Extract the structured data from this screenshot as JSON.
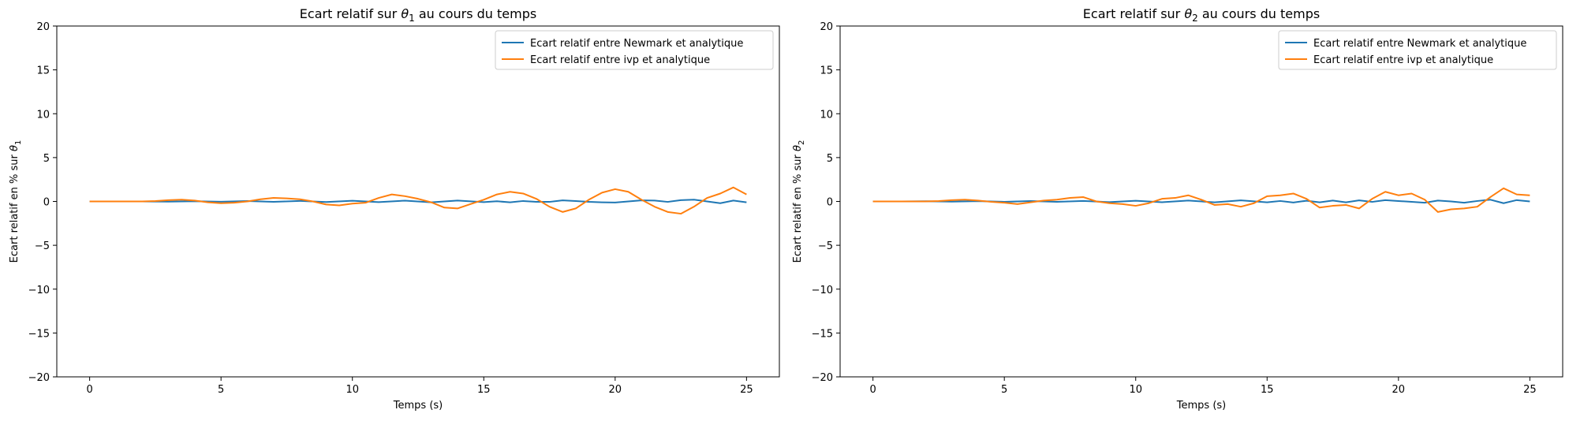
{
  "chart_data": [
    {
      "type": "line",
      "title": {
        "pre": "Ecart relatif sur ",
        "sym": "θ",
        "sub": "1",
        "post": " au cours du temps"
      },
      "xlabel": "Temps (s)",
      "ylabel": {
        "pre": "Ecart relatif en % sur ",
        "sym": "θ",
        "sub": "1"
      },
      "xlim": [
        -1.25,
        26.25
      ],
      "ylim": [
        -20,
        20
      ],
      "xticks": [
        0,
        5,
        10,
        15,
        20,
        25
      ],
      "yticks": [
        -20,
        -15,
        -10,
        -5,
        0,
        5,
        10,
        15,
        20
      ],
      "grid": false,
      "legend_position": "top-right",
      "series": [
        {
          "name": "Ecart relatif entre Newmark et analytique",
          "color": "#1f77b4",
          "x": [
            0,
            1,
            2,
            3,
            4,
            5,
            6,
            7,
            8,
            9,
            10,
            11,
            12,
            13,
            14,
            15,
            15.5,
            16,
            16.5,
            17,
            17.5,
            18,
            18.5,
            19,
            19.5,
            20,
            20.5,
            21,
            21.5,
            22,
            22.5,
            23,
            23.5,
            24,
            24.5,
            25
          ],
          "y": [
            0,
            0,
            0,
            -0.02,
            0.02,
            -0.03,
            0.04,
            -0.05,
            0.06,
            -0.07,
            0.08,
            -0.08,
            0.09,
            -0.1,
            0.1,
            -0.08,
            0.02,
            -0.1,
            0.05,
            -0.05,
            -0.05,
            0.12,
            0.05,
            -0.05,
            -0.1,
            -0.12,
            0,
            0.12,
            0.1,
            -0.05,
            0.15,
            0.2,
            0,
            -0.2,
            0.1,
            -0.1
          ]
        },
        {
          "name": "Ecart relatif entre ivp et analytique",
          "color": "#ff7f0e",
          "x": [
            0,
            1,
            2,
            2.5,
            3,
            3.5,
            4,
            4.5,
            5,
            5.5,
            6,
            6.5,
            7,
            7.5,
            8,
            8.5,
            9,
            9.5,
            10,
            10.5,
            11,
            11.5,
            12,
            12.5,
            13,
            13.5,
            14,
            14.5,
            15,
            15.5,
            16,
            16.5,
            17,
            17.5,
            18,
            18.5,
            19,
            19.5,
            20,
            20.5,
            21,
            21.5,
            22,
            22.5,
            23,
            23.5,
            24,
            24.5,
            25
          ],
          "y": [
            0,
            0,
            0,
            0.05,
            0.15,
            0.2,
            0.1,
            -0.1,
            -0.2,
            -0.15,
            0,
            0.25,
            0.4,
            0.35,
            0.25,
            0,
            -0.35,
            -0.45,
            -0.25,
            -0.15,
            0.4,
            0.8,
            0.6,
            0.3,
            -0.1,
            -0.7,
            -0.8,
            -0.3,
            0.2,
            0.8,
            1.1,
            0.9,
            0.3,
            -0.6,
            -1.2,
            -0.8,
            0.2,
            1.0,
            1.4,
            1.1,
            0.2,
            -0.6,
            -1.2,
            -1.4,
            -0.6,
            0.4,
            0.9,
            1.6,
            0.8
          ]
        }
      ]
    },
    {
      "type": "line",
      "title": {
        "pre": "Ecart relatif  sur ",
        "sym": "θ",
        "sub": "2",
        "post": " au cours du temps"
      },
      "xlabel": "Temps (s)",
      "ylabel": {
        "pre": "Ecart relatif en % sur ",
        "sym": "θ",
        "sub": "2"
      },
      "xlim": [
        -1.25,
        26.25
      ],
      "ylim": [
        -20,
        20
      ],
      "xticks": [
        0,
        5,
        10,
        15,
        20,
        25
      ],
      "yticks": [
        -20,
        -15,
        -10,
        -5,
        0,
        5,
        10,
        15,
        20
      ],
      "grid": false,
      "legend_position": "top-right",
      "series": [
        {
          "name": "Ecart relatif entre Newmark et analytique",
          "color": "#1f77b4",
          "x": [
            0,
            1,
            2,
            3,
            4,
            5,
            6,
            7,
            8,
            9,
            10,
            11,
            12,
            13,
            14,
            15,
            15.5,
            16,
            16.5,
            17,
            17.5,
            18,
            18.5,
            19,
            19.5,
            20,
            20.5,
            21,
            21.5,
            22,
            22.5,
            23,
            23.5,
            24,
            24.5,
            25
          ],
          "y": [
            0,
            0,
            0.02,
            -0.02,
            0.03,
            -0.04,
            0.05,
            -0.05,
            0.06,
            -0.08,
            0.08,
            -0.09,
            0.1,
            -0.1,
            0.12,
            -0.1,
            0.05,
            -0.12,
            0.08,
            -0.1,
            0.1,
            -0.1,
            0.12,
            -0.05,
            0.15,
            0.05,
            -0.05,
            -0.15,
            0.1,
            0.0,
            -0.15,
            0.05,
            0.2,
            -0.2,
            0.15,
            0.0
          ]
        },
        {
          "name": "Ecart relatif entre ivp et analytique",
          "color": "#ff7f0e",
          "x": [
            0,
            1,
            2,
            2.5,
            3,
            3.5,
            4,
            4.5,
            5,
            5.5,
            6,
            6.5,
            7,
            7.5,
            8,
            8.5,
            9,
            9.5,
            10,
            10.5,
            11,
            11.5,
            12,
            12.5,
            13,
            13.5,
            14,
            14.5,
            15,
            15.5,
            16,
            16.5,
            17,
            17.5,
            18,
            18.5,
            19,
            19.5,
            20,
            20.5,
            21,
            21.5,
            22,
            22.5,
            23,
            23.5,
            24,
            24.5,
            25
          ],
          "y": [
            0,
            0,
            0,
            0.05,
            0.15,
            0.2,
            0.1,
            -0.05,
            -0.15,
            -0.3,
            -0.1,
            0.1,
            0.2,
            0.4,
            0.5,
            0.0,
            -0.2,
            -0.3,
            -0.5,
            -0.2,
            0.3,
            0.4,
            0.7,
            0.2,
            -0.4,
            -0.3,
            -0.6,
            -0.2,
            0.6,
            0.7,
            0.9,
            0.3,
            -0.7,
            -0.5,
            -0.4,
            -0.8,
            0.3,
            1.1,
            0.7,
            0.9,
            0.2,
            -1.2,
            -0.9,
            -0.8,
            -0.6,
            0.5,
            1.5,
            0.8,
            0.7
          ]
        }
      ]
    }
  ]
}
